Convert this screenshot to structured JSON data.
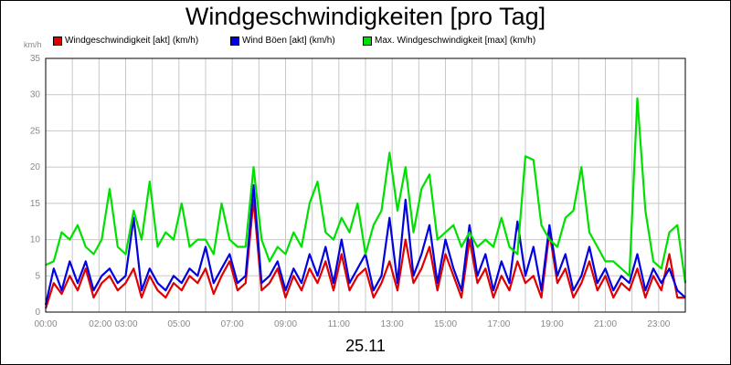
{
  "chart_data": {
    "type": "line",
    "title": "Windgeschwindigkeiten [pro Tag]",
    "unit_label": "km/h",
    "xlabel": "25.11",
    "ylim": [
      0,
      35
    ],
    "xlim": [
      0,
      24
    ],
    "y_ticks": [
      "0",
      "5",
      "10",
      "15",
      "20",
      "25",
      "30",
      "35"
    ],
    "x_ticks": [
      "00:00",
      "02:00",
      "03:00",
      "05:00",
      "07:00",
      "09:00",
      "11:00",
      "13:00",
      "15:00",
      "17:00",
      "19:00",
      "21:00",
      "23:00"
    ],
    "x_tick_hours": [
      0,
      2,
      3,
      5,
      7,
      9,
      11,
      13,
      15,
      17,
      19,
      21,
      23
    ],
    "grid": true,
    "legend_position": "top",
    "series": [
      {
        "name": "Windgeschwindigkeit [akt] (km/h)",
        "color": "#e00000",
        "x": [
          0,
          0.3,
          0.6,
          0.9,
          1.2,
          1.5,
          1.8,
          2.1,
          2.4,
          2.7,
          3.0,
          3.3,
          3.6,
          3.9,
          4.2,
          4.5,
          4.8,
          5.1,
          5.4,
          5.7,
          6.0,
          6.3,
          6.6,
          6.9,
          7.2,
          7.5,
          7.8,
          8.1,
          8.4,
          8.7,
          9.0,
          9.3,
          9.6,
          9.9,
          10.2,
          10.5,
          10.8,
          11.1,
          11.4,
          11.7,
          12.0,
          12.3,
          12.6,
          12.9,
          13.2,
          13.5,
          13.8,
          14.1,
          14.4,
          14.7,
          15.0,
          15.3,
          15.6,
          15.9,
          16.2,
          16.5,
          16.8,
          17.1,
          17.4,
          17.7,
          18.0,
          18.3,
          18.6,
          18.9,
          19.2,
          19.5,
          19.8,
          20.1,
          20.4,
          20.7,
          21.0,
          21.3,
          21.6,
          21.9,
          22.2,
          22.5,
          22.8,
          23.1,
          23.4,
          23.7,
          24.0
        ],
        "values": [
          0.5,
          4,
          2.5,
          5,
          3,
          6,
          2,
          4,
          5,
          3,
          4,
          6,
          2,
          5,
          3,
          2,
          4,
          3,
          5,
          4,
          6,
          2.5,
          5,
          7,
          3,
          4,
          15.5,
          3,
          4,
          6,
          2,
          5,
          3,
          6,
          4,
          7,
          3,
          8,
          3,
          5,
          6,
          2,
          4,
          7,
          3,
          10,
          4,
          6,
          9,
          3,
          8,
          5,
          2,
          10,
          4,
          6,
          2,
          5,
          3,
          7,
          4,
          5,
          2,
          11,
          4,
          6,
          2,
          4,
          7,
          3,
          5,
          2,
          4,
          3,
          6,
          2,
          5,
          3,
          8,
          2,
          2
        ]
      },
      {
        "name": "Wind Böen [akt] (km/h)",
        "color": "#0000e0",
        "x": [
          0,
          0.3,
          0.6,
          0.9,
          1.2,
          1.5,
          1.8,
          2.1,
          2.4,
          2.7,
          3.0,
          3.3,
          3.6,
          3.9,
          4.2,
          4.5,
          4.8,
          5.1,
          5.4,
          5.7,
          6.0,
          6.3,
          6.6,
          6.9,
          7.2,
          7.5,
          7.8,
          8.1,
          8.4,
          8.7,
          9.0,
          9.3,
          9.6,
          9.9,
          10.2,
          10.5,
          10.8,
          11.1,
          11.4,
          11.7,
          12.0,
          12.3,
          12.6,
          12.9,
          13.2,
          13.5,
          13.8,
          14.1,
          14.4,
          14.7,
          15.0,
          15.3,
          15.6,
          15.9,
          16.2,
          16.5,
          16.8,
          17.1,
          17.4,
          17.7,
          18.0,
          18.3,
          18.6,
          18.9,
          19.2,
          19.5,
          19.8,
          20.1,
          20.4,
          20.7,
          21.0,
          21.3,
          21.6,
          21.9,
          22.2,
          22.5,
          22.8,
          23.1,
          23.4,
          23.7,
          24.0
        ],
        "values": [
          1,
          6,
          3,
          7,
          4,
          7,
          3,
          5,
          6,
          4,
          5,
          13,
          3,
          6,
          4,
          3,
          5,
          4,
          6,
          5,
          9,
          4,
          6,
          8,
          4,
          5,
          17.5,
          4,
          5,
          7,
          3,
          6,
          4,
          8,
          5,
          9,
          4,
          10,
          4,
          6,
          8,
          3,
          5,
          13,
          4,
          15.5,
          5,
          8,
          12,
          4,
          10,
          6,
          3,
          12,
          5,
          8,
          3,
          7,
          4,
          12.5,
          5,
          9,
          3,
          12,
          5,
          8,
          3,
          5,
          9,
          4,
          6,
          3,
          5,
          4,
          8,
          3,
          6,
          4,
          6,
          3,
          2
        ]
      },
      {
        "name": "Max. Windgeschwindigkeit [max] (km/h)",
        "color": "#00e000",
        "x": [
          0,
          0.3,
          0.6,
          0.9,
          1.2,
          1.5,
          1.8,
          2.1,
          2.4,
          2.7,
          3.0,
          3.3,
          3.6,
          3.9,
          4.2,
          4.5,
          4.8,
          5.1,
          5.4,
          5.7,
          6.0,
          6.3,
          6.6,
          6.9,
          7.2,
          7.5,
          7.8,
          8.1,
          8.4,
          8.7,
          9.0,
          9.3,
          9.6,
          9.9,
          10.2,
          10.5,
          10.8,
          11.1,
          11.4,
          11.7,
          12.0,
          12.3,
          12.6,
          12.9,
          13.2,
          13.5,
          13.8,
          14.1,
          14.4,
          14.7,
          15.0,
          15.3,
          15.6,
          15.9,
          16.2,
          16.5,
          16.8,
          17.1,
          17.4,
          17.7,
          18.0,
          18.3,
          18.6,
          18.9,
          19.2,
          19.5,
          19.8,
          20.1,
          20.4,
          20.7,
          21.0,
          21.3,
          21.6,
          21.9,
          22.2,
          22.5,
          22.8,
          23.1,
          23.4,
          23.7,
          24.0
        ],
        "values": [
          6.5,
          7,
          11,
          10,
          12,
          9,
          8,
          10,
          17,
          9,
          8,
          14,
          10,
          18,
          9,
          11,
          10,
          15,
          9,
          10,
          10,
          8,
          15,
          10,
          9,
          9,
          20,
          10,
          7,
          9,
          8,
          11,
          9,
          15,
          18,
          11,
          10,
          13,
          11,
          15,
          8,
          12,
          14,
          22,
          14,
          20,
          11,
          17,
          19,
          10,
          11,
          12,
          9,
          11,
          9,
          10,
          9,
          13,
          9,
          8,
          21.5,
          21,
          12,
          10,
          9,
          13,
          14,
          20,
          11,
          9,
          7,
          7,
          6,
          5,
          29.5,
          14,
          7,
          6,
          11,
          12,
          4
        ]
      }
    ]
  }
}
